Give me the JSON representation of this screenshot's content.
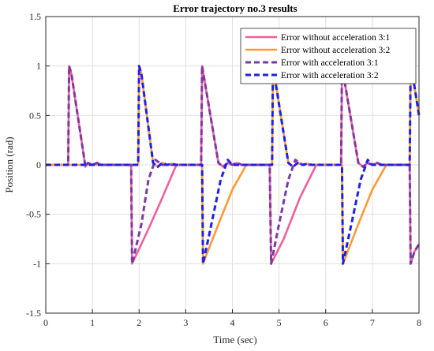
{
  "chart_data": {
    "type": "line",
    "title": "Error trajectory no.3 results",
    "xlabel": "Time (sec)",
    "ylabel": "Position (rad)",
    "xlim": [
      0,
      8
    ],
    "ylim": [
      -1.5,
      1.5
    ],
    "xticks": [
      0,
      1,
      2,
      3,
      4,
      5,
      6,
      7,
      8
    ],
    "yticks": [
      -1.5,
      -1,
      -0.5,
      0,
      0.5,
      1,
      1.5
    ],
    "xtick_labels": [
      "0",
      "1",
      "2",
      "3",
      "4",
      "5",
      "6",
      "7",
      "8"
    ],
    "ytick_labels": [
      "-1.5",
      "-1",
      "-0.5",
      "0",
      "0.5",
      "1",
      "1.5"
    ],
    "grid": true,
    "legend_position": "top-right",
    "series": [
      {
        "name": "Error without acceleration 3:1",
        "color": "#f0609a",
        "dash": "solid",
        "points": [
          [
            0,
            0
          ],
          [
            0.48,
            0
          ],
          [
            0.5,
            1
          ],
          [
            0.55,
            0.92
          ],
          [
            0.85,
            -0.02
          ],
          [
            0.9,
            0.02
          ],
          [
            1.0,
            0
          ],
          [
            1.1,
            0.02
          ],
          [
            1.2,
            0
          ],
          [
            1.8,
            0
          ],
          [
            1.83,
            0
          ],
          [
            1.85,
            -1.0
          ],
          [
            2.2,
            -0.65
          ],
          [
            2.5,
            -0.33
          ],
          [
            2.8,
            0
          ],
          [
            3.0,
            0
          ],
          [
            3.3,
            0
          ],
          [
            3.33,
            0
          ],
          [
            3.35,
            1.0
          ],
          [
            3.7,
            0.02
          ],
          [
            3.8,
            -0.02
          ],
          [
            3.9,
            0.02
          ],
          [
            4.0,
            0
          ],
          [
            4.1,
            0.02
          ],
          [
            4.2,
            0
          ],
          [
            4.8,
            0
          ],
          [
            4.83,
            -1.0
          ],
          [
            5.1,
            -0.75
          ],
          [
            5.45,
            -0.33
          ],
          [
            5.8,
            0
          ],
          [
            6.3,
            0
          ],
          [
            6.33,
            0
          ],
          [
            6.35,
            1.0
          ],
          [
            6.7,
            0.02
          ],
          [
            6.8,
            -0.02
          ],
          [
            6.9,
            0.02
          ],
          [
            7.0,
            0
          ],
          [
            7.1,
            0.02
          ],
          [
            7.2,
            0
          ],
          [
            7.8,
            0
          ],
          [
            7.82,
            -1.0
          ],
          [
            7.9,
            -0.88
          ],
          [
            8.0,
            -0.8
          ]
        ]
      },
      {
        "name": "Error without acceleration 3:2",
        "color": "#ff9933",
        "dash": "solid",
        "points": [
          [
            0,
            0
          ],
          [
            1.98,
            0
          ],
          [
            2.0,
            1.0
          ],
          [
            2.05,
            0.92
          ],
          [
            2.3,
            0.02
          ],
          [
            2.4,
            -0.02
          ],
          [
            2.5,
            0.02
          ],
          [
            2.6,
            0
          ],
          [
            2.7,
            0.01
          ],
          [
            2.8,
            0
          ],
          [
            3.35,
            0
          ],
          [
            3.37,
            -1.0
          ],
          [
            3.7,
            -0.6
          ],
          [
            4.0,
            -0.25
          ],
          [
            4.3,
            0
          ],
          [
            4.85,
            0
          ],
          [
            4.87,
            1.0
          ],
          [
            5.2,
            0.02
          ],
          [
            5.3,
            -0.02
          ],
          [
            5.4,
            0.02
          ],
          [
            5.5,
            0
          ],
          [
            5.6,
            0.01
          ],
          [
            5.7,
            0
          ],
          [
            6.35,
            0
          ],
          [
            6.37,
            -1.0
          ],
          [
            6.7,
            -0.6
          ],
          [
            7.0,
            -0.25
          ],
          [
            7.3,
            0
          ],
          [
            7.8,
            0
          ],
          [
            7.82,
            1.0
          ],
          [
            7.9,
            0.8
          ],
          [
            8.0,
            0.5
          ]
        ]
      },
      {
        "name": "Error with acceleration 3:1",
        "color": "#7b3aa3",
        "dash": "dashed",
        "points": [
          [
            0,
            0
          ],
          [
            0.48,
            0
          ],
          [
            0.5,
            1
          ],
          [
            0.55,
            0.92
          ],
          [
            0.85,
            -0.02
          ],
          [
            0.9,
            0.02
          ],
          [
            1.0,
            0
          ],
          [
            1.1,
            0.02
          ],
          [
            1.2,
            0
          ],
          [
            1.8,
            0
          ],
          [
            1.83,
            0
          ],
          [
            1.85,
            -1.0
          ],
          [
            2.05,
            -0.6
          ],
          [
            2.2,
            -0.15
          ],
          [
            2.35,
            0.05
          ],
          [
            2.5,
            0
          ],
          [
            3.3,
            0
          ],
          [
            3.33,
            0
          ],
          [
            3.35,
            1.0
          ],
          [
            3.7,
            0.02
          ],
          [
            3.8,
            -0.02
          ],
          [
            3.9,
            0.02
          ],
          [
            4.0,
            0
          ],
          [
            4.1,
            0.02
          ],
          [
            4.2,
            0
          ],
          [
            4.8,
            0
          ],
          [
            4.83,
            -1.0
          ],
          [
            5.0,
            -0.6
          ],
          [
            5.2,
            -0.15
          ],
          [
            5.35,
            0.05
          ],
          [
            5.5,
            0
          ],
          [
            6.3,
            0
          ],
          [
            6.33,
            0
          ],
          [
            6.35,
            1.0
          ],
          [
            6.7,
            0.02
          ],
          [
            6.8,
            -0.02
          ],
          [
            6.9,
            0.02
          ],
          [
            7.0,
            0
          ],
          [
            7.1,
            0.02
          ],
          [
            7.2,
            0
          ],
          [
            7.8,
            0
          ],
          [
            7.82,
            -1.0
          ],
          [
            7.9,
            -0.88
          ],
          [
            8.0,
            -0.8
          ]
        ]
      },
      {
        "name": "Error with acceleration 3:2",
        "color": "#1f1fe6",
        "dash": "dashed",
        "points": [
          [
            0,
            0
          ],
          [
            1.98,
            0
          ],
          [
            2.0,
            1.0
          ],
          [
            2.05,
            0.92
          ],
          [
            2.3,
            0.02
          ],
          [
            2.4,
            -0.02
          ],
          [
            2.5,
            0.02
          ],
          [
            2.6,
            0
          ],
          [
            2.7,
            0.01
          ],
          [
            2.8,
            0
          ],
          [
            3.35,
            0
          ],
          [
            3.37,
            -1.0
          ],
          [
            3.55,
            -0.6
          ],
          [
            3.75,
            -0.15
          ],
          [
            3.9,
            0.05
          ],
          [
            4.0,
            0
          ],
          [
            4.85,
            0
          ],
          [
            4.87,
            1.0
          ],
          [
            5.2,
            0.02
          ],
          [
            5.3,
            -0.02
          ],
          [
            5.4,
            0.02
          ],
          [
            5.5,
            0
          ],
          [
            5.6,
            0.01
          ],
          [
            5.7,
            0
          ],
          [
            6.35,
            0
          ],
          [
            6.37,
            -1.0
          ],
          [
            6.55,
            -0.6
          ],
          [
            6.75,
            -0.15
          ],
          [
            6.9,
            0.05
          ],
          [
            7.0,
            0
          ],
          [
            7.8,
            0
          ],
          [
            7.82,
            1.0
          ],
          [
            7.9,
            0.8
          ],
          [
            8.0,
            0.5
          ]
        ]
      }
    ]
  }
}
